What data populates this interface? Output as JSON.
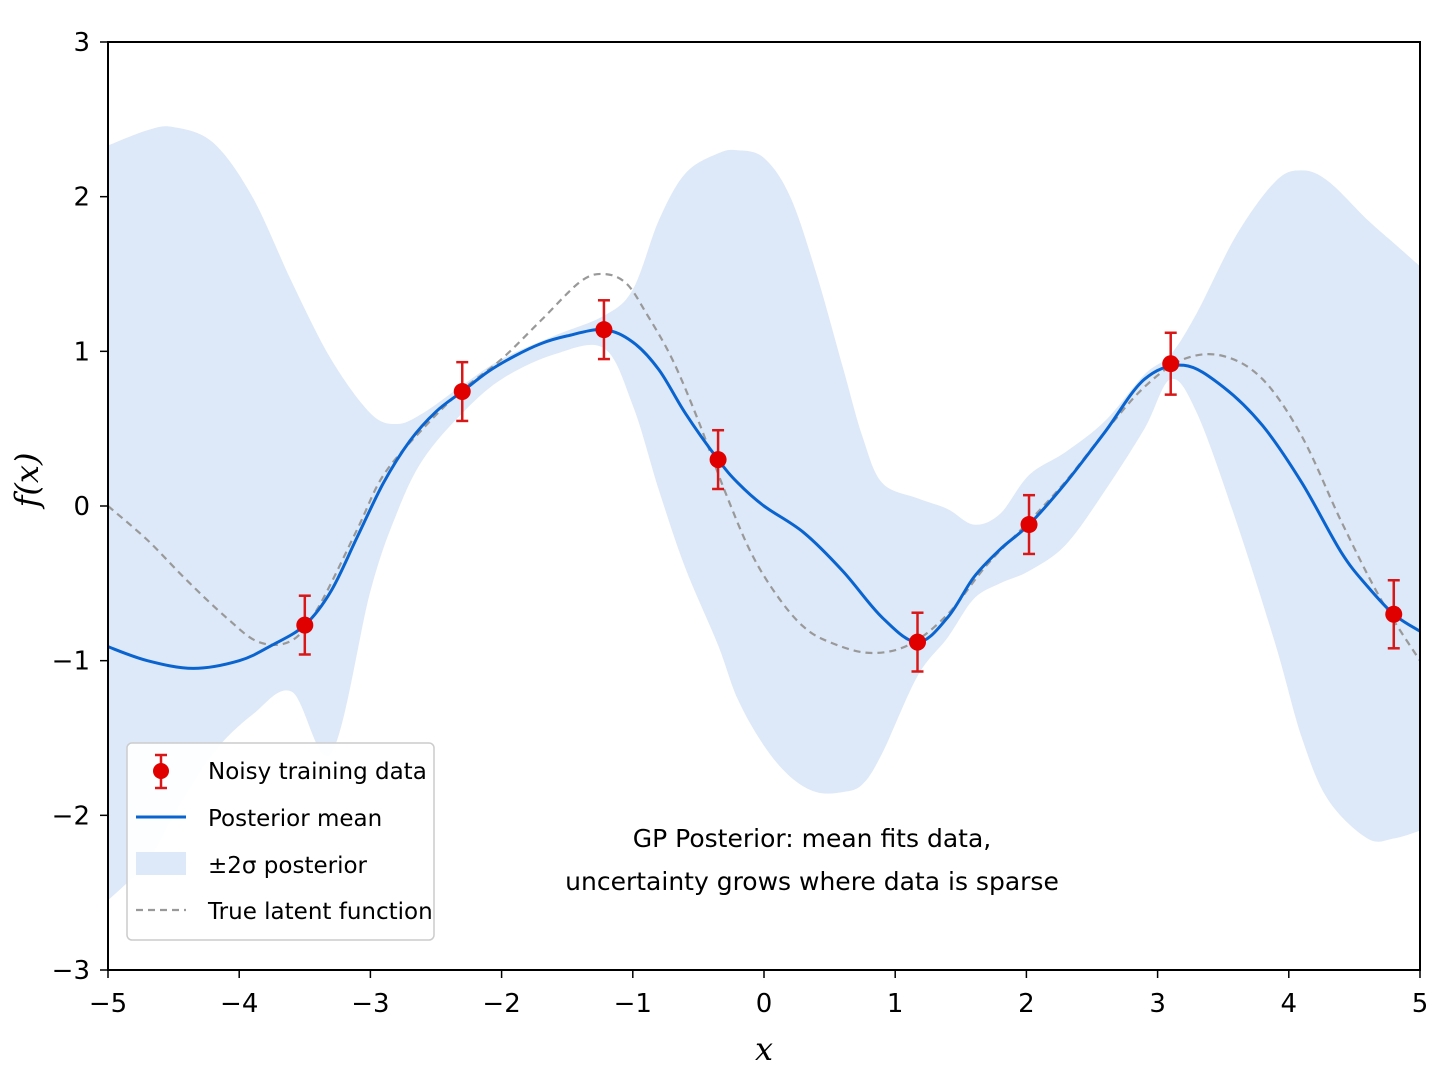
{
  "chart_data": {
    "type": "line",
    "title": "",
    "xlabel": "x",
    "ylabel": "f(x)",
    "xlim": [
      -5,
      5
    ],
    "ylim": [
      -3,
      3
    ],
    "xticks": [
      -5,
      -4,
      -3,
      -2,
      -1,
      0,
      1,
      2,
      3,
      4,
      5
    ],
    "xtick_labels": [
      "−5",
      "−4",
      "−3",
      "−2",
      "−1",
      "0",
      "1",
      "2",
      "3",
      "4",
      "5"
    ],
    "yticks": [
      -3,
      -2,
      -1,
      0,
      1,
      2,
      3
    ],
    "ytick_labels": [
      "−3",
      "−2",
      "−1",
      "0",
      "1",
      "2",
      "3"
    ],
    "grid": false,
    "legend_position": "lower-left",
    "annotation": [
      "GP Posterior: mean fits data,",
      "uncertainty grows where data is sparse"
    ],
    "colors": {
      "data": "#e00000",
      "errorbar": "#d81818",
      "mean": "#0a64d0",
      "band": "#dde9f8",
      "truth": "#999999"
    },
    "legend": [
      {
        "key": "data",
        "label": "Noisy training data"
      },
      {
        "key": "mean",
        "label": "Posterior mean"
      },
      {
        "key": "band",
        "label": "±2σ posterior"
      },
      {
        "key": "truth",
        "label": "True latent function"
      }
    ],
    "series": [
      {
        "name": "Noisy training data",
        "kind": "errorbar",
        "points": [
          {
            "x": -3.5,
            "y": -0.77,
            "err": 0.19
          },
          {
            "x": -2.3,
            "y": 0.74,
            "err": 0.19
          },
          {
            "x": -1.22,
            "y": 1.14,
            "err": 0.19
          },
          {
            "x": -0.35,
            "y": 0.3,
            "err": 0.19
          },
          {
            "x": 1.17,
            "y": -0.88,
            "err": 0.19
          },
          {
            "x": 2.02,
            "y": -0.12,
            "err": 0.19
          },
          {
            "x": 3.1,
            "y": 0.92,
            "err": 0.2
          },
          {
            "x": 4.8,
            "y": -0.7,
            "err": 0.22
          }
        ]
      },
      {
        "name": "Posterior mean",
        "kind": "line",
        "x": [
          -5,
          -4.7,
          -4.35,
          -4.0,
          -3.75,
          -3.5,
          -3.3,
          -3.1,
          -2.9,
          -2.7,
          -2.5,
          -2.3,
          -2.1,
          -1.9,
          -1.7,
          -1.5,
          -1.22,
          -1.0,
          -0.8,
          -0.6,
          -0.35,
          -0.2,
          0,
          0.3,
          0.6,
          0.9,
          1.17,
          1.4,
          1.6,
          1.8,
          2.02,
          2.3,
          2.6,
          2.9,
          3.2,
          3.5,
          3.8,
          4.1,
          4.4,
          4.6,
          4.8,
          5.0
        ],
        "y": [
          -0.91,
          -1.0,
          -1.05,
          -1.0,
          -0.9,
          -0.77,
          -0.55,
          -0.2,
          0.15,
          0.42,
          0.61,
          0.74,
          0.87,
          0.97,
          1.05,
          1.1,
          1.14,
          1.06,
          0.88,
          0.6,
          0.3,
          0.15,
          0.0,
          -0.17,
          -0.42,
          -0.72,
          -0.88,
          -0.72,
          -0.46,
          -0.28,
          -0.12,
          0.15,
          0.48,
          0.82,
          0.91,
          0.77,
          0.52,
          0.15,
          -0.3,
          -0.52,
          -0.7,
          -0.81
        ]
      },
      {
        "name": "±2σ posterior",
        "kind": "band",
        "x": [
          -5,
          -4.7,
          -4.5,
          -4.2,
          -3.9,
          -3.6,
          -3.3,
          -3.0,
          -2.8,
          -2.6,
          -2.3,
          -2.0,
          -1.6,
          -1.22,
          -1.0,
          -0.8,
          -0.6,
          -0.35,
          -0.2,
          0.0,
          0.2,
          0.4,
          0.6,
          0.75,
          0.9,
          1.17,
          1.4,
          1.6,
          1.8,
          2.02,
          2.3,
          2.6,
          2.9,
          3.1,
          3.3,
          3.6,
          3.9,
          4.1,
          4.3,
          4.6,
          4.8,
          5.0
        ],
        "upper": [
          2.33,
          2.43,
          2.45,
          2.35,
          2.0,
          1.45,
          0.95,
          0.6,
          0.53,
          0.6,
          0.78,
          0.95,
          1.1,
          1.23,
          1.4,
          1.85,
          2.15,
          2.28,
          2.3,
          2.25,
          2.0,
          1.5,
          0.9,
          0.45,
          0.15,
          0.05,
          -0.02,
          -0.12,
          -0.05,
          0.2,
          0.35,
          0.55,
          0.85,
          0.98,
          1.25,
          1.75,
          2.1,
          2.17,
          2.1,
          1.85,
          1.7,
          1.55
        ],
        "lower": [
          -2.55,
          -2.3,
          -2.0,
          -1.6,
          -1.35,
          -1.2,
          -1.6,
          -0.55,
          -0.05,
          0.3,
          0.6,
          0.82,
          0.98,
          1.02,
          0.65,
          0.1,
          -0.4,
          -0.9,
          -1.25,
          -1.55,
          -1.75,
          -1.85,
          -1.85,
          -1.8,
          -1.6,
          -1.1,
          -0.85,
          -0.6,
          -0.5,
          -0.42,
          -0.25,
          0.1,
          0.5,
          0.82,
          0.6,
          -0.1,
          -0.9,
          -1.5,
          -1.9,
          -2.15,
          -2.15,
          -2.1
        ]
      },
      {
        "name": "True latent function",
        "kind": "dashed-line",
        "x": [
          -5,
          -4.7,
          -4.4,
          -4.1,
          -3.85,
          -3.6,
          -3.4,
          -3.1,
          -2.9,
          -2.6,
          -2.3,
          -2.0,
          -1.7,
          -1.4,
          -1.22,
          -1.05,
          -0.9,
          -0.7,
          -0.5,
          -0.3,
          -0.1,
          0.1,
          0.3,
          0.5,
          0.8,
          1.1,
          1.4,
          1.7,
          2.02,
          2.3,
          2.6,
          2.9,
          3.2,
          3.5,
          3.8,
          4.1,
          4.4,
          4.7,
          5.0
        ],
        "y": [
          0.0,
          -0.22,
          -0.48,
          -0.72,
          -0.88,
          -0.87,
          -0.66,
          -0.15,
          0.2,
          0.5,
          0.75,
          0.95,
          1.2,
          1.45,
          1.5,
          1.44,
          1.25,
          0.95,
          0.55,
          0.1,
          -0.3,
          -0.58,
          -0.78,
          -0.88,
          -0.95,
          -0.9,
          -0.7,
          -0.38,
          -0.1,
          0.16,
          0.48,
          0.77,
          0.95,
          0.97,
          0.82,
          0.45,
          -0.1,
          -0.6,
          -1.0
        ]
      }
    ]
  }
}
